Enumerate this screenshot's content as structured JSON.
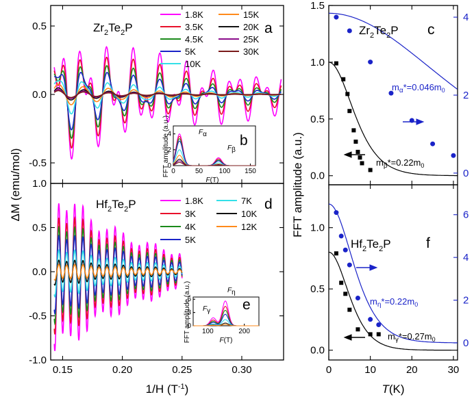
{
  "chart_data": [
    {
      "type": "line",
      "panel": "a",
      "title": "Zr2Te2P",
      "xlabel": "1/H (T-1)",
      "ylabel": "ΔM (emu/mol)",
      "xlim": [
        0.14,
        0.335
      ],
      "ylim": [
        -0.65,
        0.65
      ],
      "xticks": [
        "0.15",
        "0.20",
        "0.25",
        "0.30"
      ],
      "yticks": [
        "-0.5",
        "0.0",
        "0.5"
      ],
      "series": [
        {
          "name": "1.8K",
          "color": "#ff00ff"
        },
        {
          "name": "3.5K",
          "color": "#e8102a"
        },
        {
          "name": "4.5K",
          "color": "#1a8a1a"
        },
        {
          "name": "5K",
          "color": "#1a23c8"
        },
        {
          "name": "10K",
          "color": "#33e0e8"
        },
        {
          "name": "15K",
          "color": "#ff8a1a"
        },
        {
          "name": "20K",
          "color": "#111111"
        },
        {
          "name": "25K",
          "color": "#8a0a8a"
        },
        {
          "name": "30K",
          "color": "#7a1a1a"
        }
      ],
      "amplitudes": [
        0.62,
        0.58,
        0.54,
        0.5,
        0.32,
        0.2,
        0.12,
        0.09,
        0.07
      ]
    },
    {
      "type": "line",
      "panel": "b",
      "xlabel": "F(T)",
      "ylabel": "FFT amplitude (a.u.)",
      "xlim": [
        0,
        160
      ],
      "ylim": [
        0,
        5
      ],
      "xticks": [
        "0",
        "50",
        "100",
        "150"
      ],
      "yticks": [
        "0",
        "2",
        "4"
      ],
      "labels": [
        "Fα",
        "Fβ"
      ],
      "peaks": [
        {
          "f": 12,
          "heights": [
            4.0,
            3.7,
            3.4,
            3.1,
            2.0,
            1.3,
            0.8,
            0.6,
            0.4
          ]
        },
        {
          "f": 88,
          "heights": [
            1.0,
            0.85,
            0.7,
            0.6,
            0.35,
            0.2,
            0.12,
            0.08,
            0.05
          ]
        }
      ]
    },
    {
      "type": "line",
      "panel": "c",
      "title": "Zr2Te2P",
      "xlabel": "T(K)",
      "ylabel": "FFT amplitude (a.u.)",
      "xlim": [
        0,
        31
      ],
      "ylim_left": [
        -0.08,
        1.5
      ],
      "ylim_right": [
        -0.3,
        4.3
      ],
      "xticks": [
        "0",
        "10",
        "20",
        "30"
      ],
      "yticks_left": [
        "0.0",
        "0.5",
        "1.0",
        "1.5"
      ],
      "yticks_right": [
        "0",
        "2",
        "4"
      ],
      "annotations": [
        "mα*=0.046m0",
        "mβ*=0.22m0"
      ],
      "series": [
        {
          "name": "mβ",
          "axis": "left",
          "color": "#000000",
          "points": [
            [
              1.8,
              0.99
            ],
            [
              3.5,
              0.85
            ],
            [
              4.5,
              0.72
            ],
            [
              5,
              0.57
            ],
            [
              6,
              0.4
            ],
            [
              6.5,
              0.3
            ],
            [
              7,
              0.21
            ],
            [
              7.5,
              0.16
            ],
            [
              8,
              0.11
            ],
            [
              10,
              0.05
            ]
          ],
          "fit": {
            "A": 1.0,
            "m": 0.22
          }
        },
        {
          "name": "mα",
          "axis": "right",
          "color": "#1a23c8",
          "points": [
            [
              1.8,
              4.0
            ],
            [
              5,
              3.65
            ],
            [
              10,
              2.85
            ],
            [
              15,
              2.05
            ],
            [
              20,
              1.35
            ],
            [
              25,
              0.75
            ],
            [
              30,
              0.45
            ]
          ],
          "fit": {
            "A": 4.1,
            "m": 0.046
          }
        }
      ]
    },
    {
      "type": "line",
      "panel": "d",
      "title": "Hf2Te2P",
      "xlabel": "1/H (T-1)",
      "ylabel": "ΔM (emu/mol)",
      "xlim": [
        0.14,
        0.335
      ],
      "ylim": [
        -1.0,
        1.0
      ],
      "xticks": [
        "0.15",
        "0.20",
        "0.25",
        "0.30"
      ],
      "yticks": [
        "-1.0",
        "-0.5",
        "0.0",
        "0.5",
        "1.0"
      ],
      "series": [
        {
          "name": "1.8K",
          "color": "#ff00ff"
        },
        {
          "name": "3K",
          "color": "#e8102a"
        },
        {
          "name": "4K",
          "color": "#1a8a1a"
        },
        {
          "name": "5K",
          "color": "#1a23c8"
        },
        {
          "name": "7K",
          "color": "#33e0e8"
        },
        {
          "name": "10K",
          "color": "#111111"
        },
        {
          "name": "12K",
          "color": "#ff8a1a"
        }
      ],
      "amplitudes": [
        0.95,
        0.75,
        0.62,
        0.5,
        0.3,
        0.16,
        0.1
      ]
    },
    {
      "type": "line",
      "panel": "e",
      "xlabel": "F(T)",
      "ylabel": "FFT amplitude (a.u.)",
      "xlim": [
        60,
        240
      ],
      "ylim": [
        0,
        6.5
      ],
      "xticks": [
        "100",
        "200"
      ],
      "yticks": [
        "0",
        "3",
        "6"
      ],
      "labels": [
        "Fη",
        "Fγ"
      ],
      "peaks": [
        {
          "f": 148,
          "heights": [
            5.6,
            4.4,
            3.5,
            2.6,
            1.4,
            0.6,
            0.3
          ]
        },
        {
          "f": 115,
          "heights": [
            1.8,
            1.3,
            1.0,
            0.75,
            0.4,
            0.18,
            0.1
          ]
        }
      ]
    },
    {
      "type": "line",
      "panel": "f",
      "title": "Hf2Te2P",
      "xlabel": "T(K)",
      "ylabel": "FFT amplitude (a.u.)",
      "xlim": [
        0,
        31
      ],
      "ylim_left": [
        -0.08,
        1.35
      ],
      "ylim_right": [
        -0.8,
        7.4
      ],
      "xticks": [
        "0",
        "10",
        "20",
        "30"
      ],
      "yticks_left": [
        "0.0",
        "0.5",
        "1.0"
      ],
      "yticks_right": [
        "0",
        "2",
        "4",
        "6"
      ],
      "annotations": [
        "mη*=0.22m0",
        "mγ*=0.27m0"
      ],
      "series": [
        {
          "name": "mγ",
          "axis": "left",
          "color": "#000000",
          "points": [
            [
              1.8,
              0.79
            ],
            [
              3,
              0.55
            ],
            [
              4,
              0.46
            ],
            [
              5,
              0.33
            ],
            [
              7,
              0.17
            ],
            [
              10,
              0.13
            ],
            [
              12,
              0.13
            ]
          ],
          "fit": {
            "A": 0.8,
            "m": 0.27
          }
        },
        {
          "name": "mη",
          "axis": "right",
          "color": "#1a23c8",
          "points": [
            [
              1.8,
              6.1
            ],
            [
              3,
              5.0
            ],
            [
              4,
              4.35
            ],
            [
              5,
              3.65
            ],
            [
              7,
              2.1
            ],
            [
              10,
              1.1
            ],
            [
              12,
              0.85
            ]
          ],
          "fit": {
            "A": 6.5,
            "m": 0.22,
            "offset": 0.0
          }
        }
      ]
    }
  ],
  "text": {
    "letter_a": "a",
    "letter_b": "b",
    "letter_c": "c",
    "letter_d": "d",
    "letter_e": "e",
    "letter_f": "f",
    "zr_formula_1": "Zr",
    "zr_sub_1": "2",
    "zr_formula_2": "Te",
    "zr_sub_2": "2",
    "zr_formula_3": "P",
    "hf_formula_1": "Hf",
    "hf_sub_1": "2",
    "hf_formula_2": "Te",
    "hf_sub_2": "2",
    "hf_formula_3": "P",
    "left_ylabel": "ΔM (emu/mol)",
    "left_xlabel_1": "1/H (T",
    "left_xlabel_sup": "-1",
    "left_xlabel_2": ")",
    "right_ylabel": "FFT amplitude (a.u.)",
    "right_xlabel_1": "T",
    "right_xlabel_2": "(K)",
    "inset_ylabel": "FFT amplitude (a.u.)",
    "inset_xlabel_1": "F",
    "inset_xlabel_2": "(T)",
    "b_F": "F",
    "b_alpha": "α",
    "b_F2": "F",
    "b_beta": "β",
    "e_F": "F",
    "e_eta": "η",
    "e_F2": "F",
    "e_gamma": "γ",
    "c_ann1_a": "m",
    "c_ann1_sub": "α",
    "c_ann1_b": "*=0.046m",
    "c_ann1_sub2": "0",
    "c_ann2_a": "m",
    "c_ann2_sub": "β",
    "c_ann2_b": "*=0.22m",
    "c_ann2_sub2": "0",
    "f_ann1_a": "m",
    "f_ann1_sub": "η",
    "f_ann1_b": "*=0.22m",
    "f_ann1_sub2": "0",
    "f_ann2_a": "m",
    "f_ann2_sub": "γ",
    "f_ann2_b": "*=0.27m",
    "f_ann2_sub2": "0"
  }
}
